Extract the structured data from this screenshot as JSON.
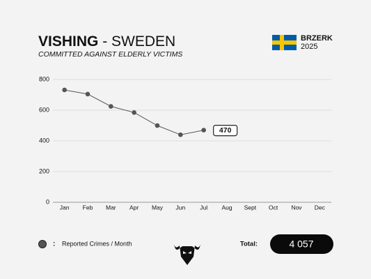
{
  "chart_data": {
    "type": "line",
    "title_bold": "VISHING",
    "title_rest": "- SWEDEN",
    "subtitle": "COMMITTED AGAINST ELDERLY VICTIMS",
    "brand": "BRZERK",
    "year": "2025",
    "categories": [
      "Jan",
      "Feb",
      "Mar",
      "Apr",
      "May",
      "Jun",
      "Jul",
      "Aug",
      "Sept",
      "Oct",
      "Nov",
      "Dec"
    ],
    "series": [
      {
        "name": "Reported Crimes / Month",
        "color": "#555555",
        "values": [
          732,
          705,
          625,
          585,
          500,
          440,
          470,
          null,
          null,
          null,
          null,
          null
        ]
      }
    ],
    "legend_separator": ":",
    "total_label": "Total:",
    "total": "4 057",
    "ylim": [
      0,
      800
    ],
    "yticks": [
      0,
      200,
      400,
      600,
      800
    ],
    "grid": true
  }
}
